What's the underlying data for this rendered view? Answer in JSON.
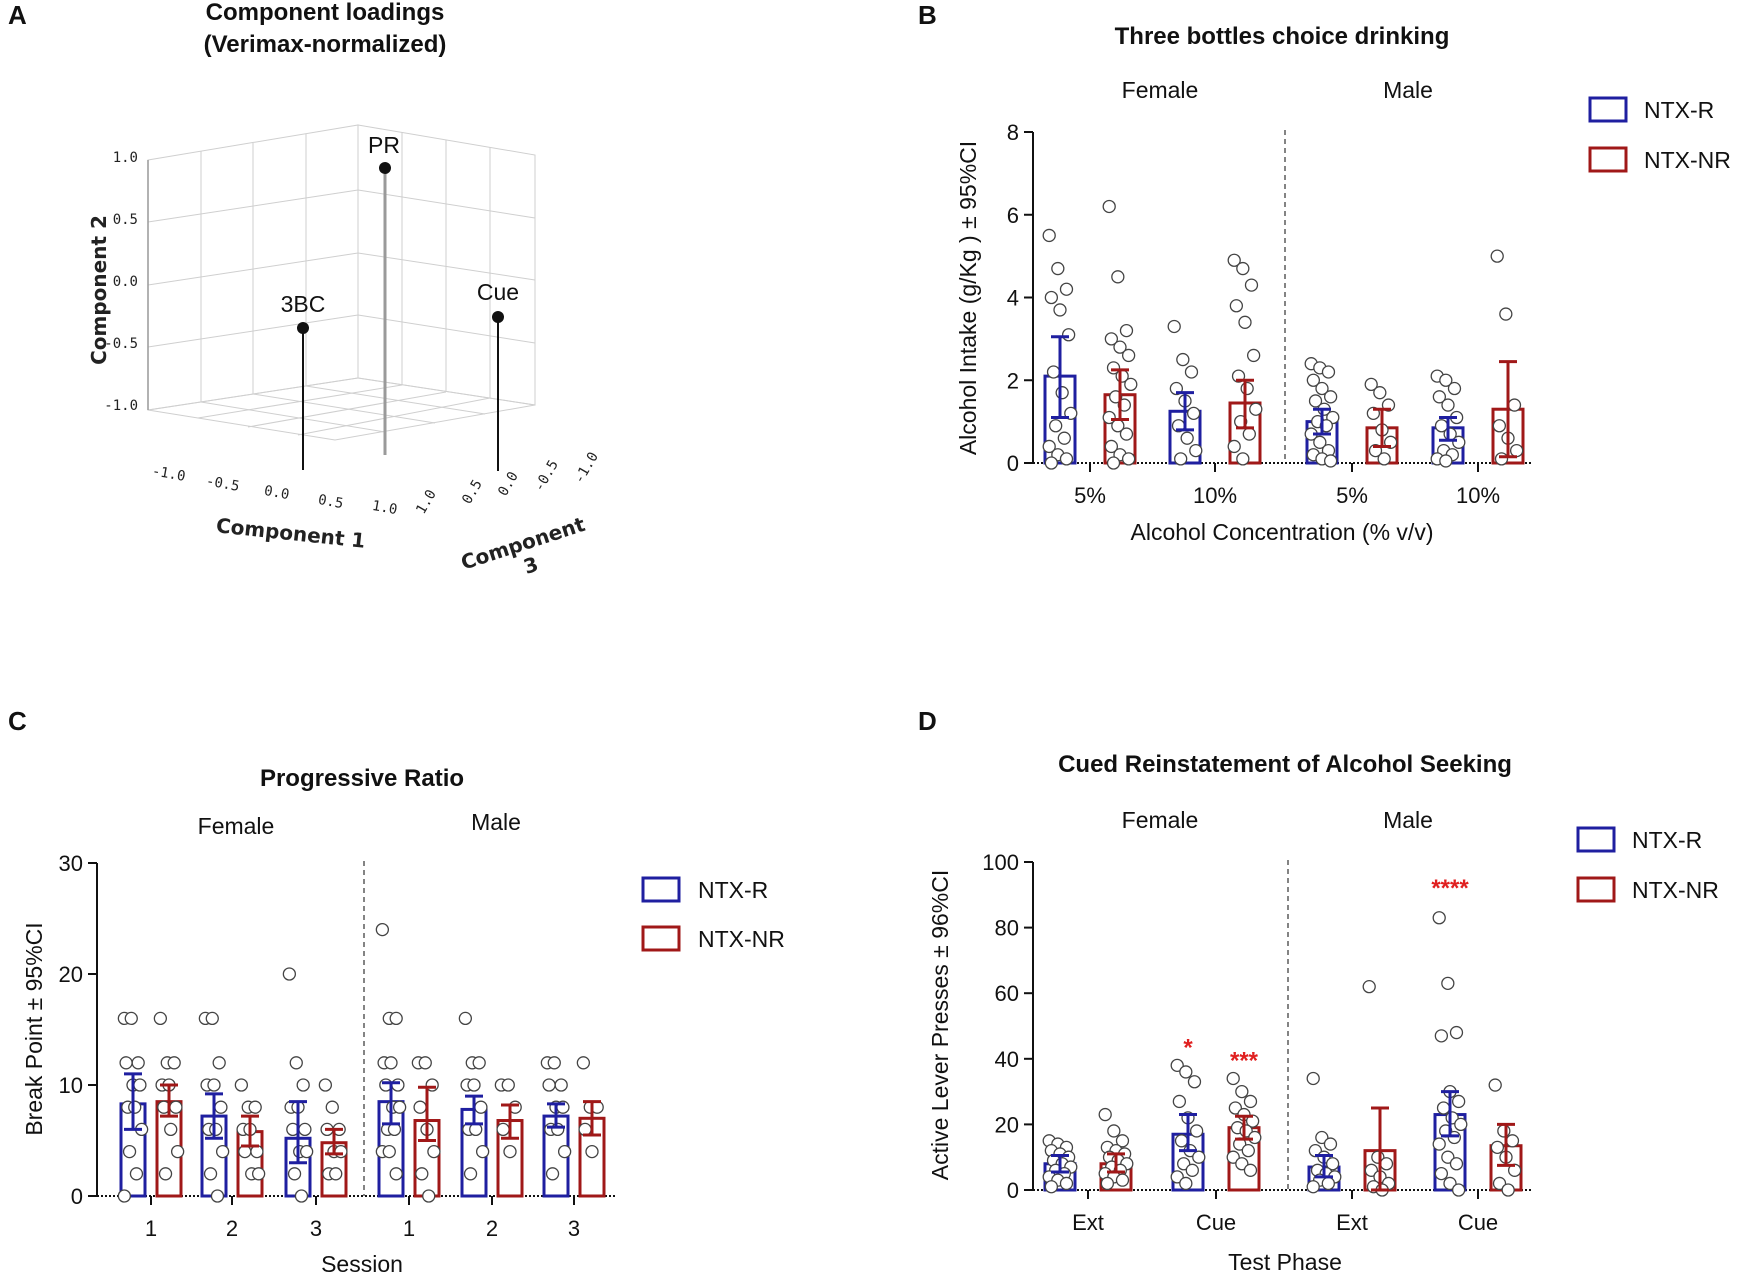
{
  "panels": {
    "A": {
      "letter": "A",
      "title_line1": "Component loadings",
      "title_line2": "(Verimax-normalized)",
      "axis_labels": {
        "component1": "Component 1",
        "component2": "Component 2",
        "component3_line1": "Component",
        "component3_line2": "3"
      },
      "ticks": {
        "component2": [
          "1.0",
          "0.5",
          "0.0",
          "-0.5",
          "-1.0"
        ],
        "component1": [
          "-1.0",
          "-0.5",
          "0.0",
          "0.5",
          "1.0"
        ],
        "component3": [
          "1.0",
          "0.5",
          "0.0",
          "-0.5",
          "-1.0"
        ]
      },
      "points": [
        {
          "label": "PR"
        },
        {
          "label": "3BC"
        },
        {
          "label": "Cue"
        }
      ]
    },
    "B": {
      "letter": "B",
      "title": "Three bottles choice drinking",
      "ylabel": "Alcohol Intake (g/Kg ) ± 95%CI",
      "xlabel": "Alcohol Concentration (% v/v)",
      "groups": [
        "Female",
        "Male"
      ],
      "categories": [
        "5%",
        "10%",
        "5%",
        "10%"
      ],
      "yticks": [
        "0",
        "2",
        "4",
        "6",
        "8"
      ],
      "legend": [
        "NTX-R",
        "NTX-NR"
      ],
      "stars": []
    },
    "C": {
      "letter": "C",
      "title": "Progressive Ratio",
      "ylabel": "Break Point ± 95%CI",
      "xlabel": "Session",
      "groups": [
        "Female",
        "Male"
      ],
      "categories": [
        "1",
        "2",
        "3",
        "1",
        "2",
        "3"
      ],
      "yticks": [
        "0",
        "10",
        "20",
        "30"
      ],
      "legend": [
        "NTX-R",
        "NTX-NR"
      ],
      "stars": []
    },
    "D": {
      "letter": "D",
      "title": "Cued Reinstatement of Alcohol Seeking",
      "ylabel": "Active Lever Presses ± 96%CI",
      "xlabel": "Test Phase",
      "groups": [
        "Female",
        "Male"
      ],
      "categories": [
        "Ext",
        "Cue",
        "Ext",
        "Cue"
      ],
      "yticks": [
        "0",
        "20",
        "40",
        "60",
        "80",
        "100"
      ],
      "legend": [
        "NTX-R",
        "NTX-NR"
      ],
      "stars": [
        "*",
        "***",
        "****"
      ]
    }
  },
  "colors": {
    "ntx_r": "#1f1fa0",
    "ntx_nr": "#a01818",
    "stars": "#e02020"
  },
  "chart_data": [
    {
      "panel": "A",
      "type": "scatter",
      "title": "Component loadings (Verimax-normalized)",
      "axes": [
        "Component 1",
        "Component 2",
        "Component 3"
      ],
      "range": [
        -1.0,
        1.0
      ],
      "points": [
        {
          "label": "PR",
          "component1": 0.1,
          "component2": 1.0,
          "component3": -0.1
        },
        {
          "label": "3BC",
          "component1": 0.0,
          "component2": 0.0,
          "component3": 0.6
        },
        {
          "label": "Cue",
          "component1": 0.9,
          "component2": 0.0,
          "component3": 0.0
        }
      ]
    },
    {
      "panel": "B",
      "type": "bar",
      "title": "Three bottles choice drinking",
      "xlabel": "Alcohol Concentration (% v/v)",
      "ylabel": "Alcohol Intake (g/Kg ) ± 95%CI",
      "ylim": [
        0,
        8
      ],
      "categories": [
        "Female 5%",
        "Female 10%",
        "Male 5%",
        "Male 10%"
      ],
      "series": [
        {
          "name": "NTX-R",
          "values": [
            2.1,
            1.25,
            1.0,
            0.85
          ],
          "ci_low": [
            1.1,
            0.8,
            0.7,
            0.55
          ],
          "ci_high": [
            3.05,
            1.7,
            1.3,
            1.1
          ],
          "points": [
            [
              5.5,
              4.7,
              4.2,
              4.0,
              3.7,
              3.1,
              2.2,
              1.7,
              1.2,
              0.9,
              0.6,
              0.4,
              0.2,
              0.1,
              0.0
            ],
            [
              3.3,
              2.5,
              2.2,
              1.8,
              1.5,
              1.2,
              0.9,
              0.6,
              0.3,
              0.1
            ],
            [
              2.4,
              2.3,
              2.2,
              2.0,
              1.8,
              1.6,
              1.5,
              1.3,
              1.1,
              1.0,
              0.9,
              0.7,
              0.5,
              0.3,
              0.2,
              0.1,
              0.05
            ],
            [
              2.1,
              2.0,
              1.8,
              1.6,
              1.4,
              1.1,
              0.9,
              0.7,
              0.5,
              0.3,
              0.2,
              0.1,
              0.05
            ]
          ]
        },
        {
          "name": "NTX-NR",
          "values": [
            1.65,
            1.45,
            0.85,
            1.3
          ],
          "ci_low": [
            1.05,
            0.85,
            0.4,
            0.15
          ],
          "ci_high": [
            2.25,
            2.0,
            1.3,
            2.45
          ],
          "points": [
            [
              6.2,
              4.5,
              3.2,
              3.0,
              2.8,
              2.6,
              2.3,
              2.1,
              1.9,
              1.6,
              1.4,
              1.1,
              0.9,
              0.7,
              0.4,
              0.2,
              0.1,
              0.0
            ],
            [
              4.9,
              4.7,
              4.3,
              3.8,
              3.4,
              2.6,
              2.1,
              1.8,
              1.3,
              1.0,
              0.7,
              0.4,
              0.1
            ],
            [
              1.9,
              1.7,
              1.4,
              1.2,
              0.8,
              0.5,
              0.3,
              0.1
            ],
            [
              5.0,
              3.6,
              1.4,
              0.9,
              0.6,
              0.3,
              0.1
            ]
          ]
        }
      ]
    },
    {
      "panel": "C",
      "type": "bar",
      "title": "Progressive Ratio",
      "xlabel": "Session",
      "ylabel": "Break Point ± 95%CI",
      "ylim": [
        0,
        30
      ],
      "categories": [
        "Female 1",
        "Female 2",
        "Female 3",
        "Male 1",
        "Male 2",
        "Male 3"
      ],
      "series": [
        {
          "name": "NTX-R",
          "values": [
            8.3,
            7.2,
            5.2,
            8.5,
            7.8,
            7.2
          ],
          "ci_low": [
            6.0,
            5.2,
            3.0,
            6.5,
            6.5,
            6.2
          ],
          "ci_high": [
            11.0,
            9.2,
            8.5,
            10.2,
            9.0,
            8.3
          ],
          "points": [
            [
              16,
              16,
              12,
              12,
              10,
              10,
              8,
              8,
              6,
              4,
              2,
              0
            ],
            [
              16,
              16,
              12,
              10,
              10,
              8,
              6,
              6,
              4,
              2,
              0
            ],
            [
              20,
              12,
              10,
              8,
              8,
              6,
              6,
              4,
              4,
              2,
              0
            ],
            [
              24,
              16,
              16,
              12,
              12,
              10,
              10,
              8,
              8,
              6,
              6,
              4,
              4,
              2
            ],
            [
              16,
              12,
              12,
              10,
              10,
              8,
              6,
              6,
              4,
              2
            ],
            [
              12,
              12,
              10,
              10,
              8,
              8,
              6,
              6,
              4,
              2
            ]
          ]
        },
        {
          "name": "NTX-NR",
          "values": [
            8.5,
            5.8,
            4.8,
            6.8,
            6.8,
            7.0
          ],
          "ci_low": [
            7.2,
            4.5,
            3.8,
            5.0,
            5.2,
            5.5
          ],
          "ci_high": [
            10.0,
            7.2,
            6.0,
            9.8,
            8.2,
            8.5
          ],
          "points": [
            [
              16,
              12,
              12,
              10,
              10,
              8,
              8,
              6,
              4,
              2
            ],
            [
              10,
              8,
              8,
              6,
              6,
              4,
              4,
              2,
              2
            ],
            [
              10,
              8,
              6,
              6,
              4,
              4,
              2,
              2
            ],
            [
              12,
              12,
              10,
              8,
              6,
              4,
              2,
              0
            ],
            [
              10,
              10,
              8,
              6,
              4
            ],
            [
              12,
              8,
              8,
              6,
              4
            ]
          ]
        }
      ]
    },
    {
      "panel": "D",
      "type": "bar",
      "title": "Cued Reinstatement of Alcohol Seeking",
      "xlabel": "Test Phase",
      "ylabel": "Active Lever Presses ± 96%CI",
      "ylim": [
        0,
        100
      ],
      "categories": [
        "Female Ext",
        "Female Cue",
        "Male Ext",
        "Male Cue"
      ],
      "series": [
        {
          "name": "NTX-R",
          "values": [
            8.0,
            17.0,
            7.0,
            23.0
          ],
          "ci_low": [
            5.5,
            12.0,
            4.0,
            16.5
          ],
          "ci_high": [
            10.5,
            23.0,
            10.5,
            30.0
          ],
          "points": [
            [
              15,
              14,
              13,
              12,
              11,
              10,
              9,
              8,
              7,
              6,
              5,
              4,
              3,
              2,
              1
            ],
            [
              38,
              36,
              33,
              27,
              22,
              18,
              15,
              12,
              10,
              8,
              6,
              4,
              2
            ],
            [
              34,
              16,
              14,
              12,
              10,
              8,
              6,
              5,
              4,
              3,
              2,
              1
            ],
            [
              83,
              63,
              48,
              47,
              30,
              27,
              25,
              22,
              20,
              18,
              16,
              14,
              10,
              8,
              5,
              2,
              0
            ]
          ]
        },
        {
          "name": "NTX-NR",
          "values": [
            8.0,
            19.0,
            12.0,
            13.5
          ],
          "ci_low": [
            5.5,
            15.5,
            0.0,
            7.5
          ],
          "ci_high": [
            11.0,
            22.5,
            25.0,
            20.0
          ],
          "points": [
            [
              23,
              18,
              15,
              13,
              12,
              11,
              10,
              9,
              8,
              7,
              6,
              5,
              4,
              3,
              2
            ],
            [
              34,
              30,
              27,
              25,
              23,
              21,
              19,
              18,
              16,
              14,
              12,
              10,
              8,
              6
            ],
            [
              62,
              10,
              8,
              6,
              4,
              2,
              1,
              0
            ],
            [
              32,
              18,
              15,
              13,
              10,
              6,
              2,
              0
            ]
          ]
        }
      ],
      "significance": [
        {
          "category": "Female Cue",
          "series": "NTX-R",
          "stars": "*"
        },
        {
          "category": "Female Cue",
          "series": "NTX-NR",
          "stars": "***"
        },
        {
          "category": "Male Cue",
          "series": "NTX-R",
          "stars": "****"
        }
      ]
    }
  ]
}
